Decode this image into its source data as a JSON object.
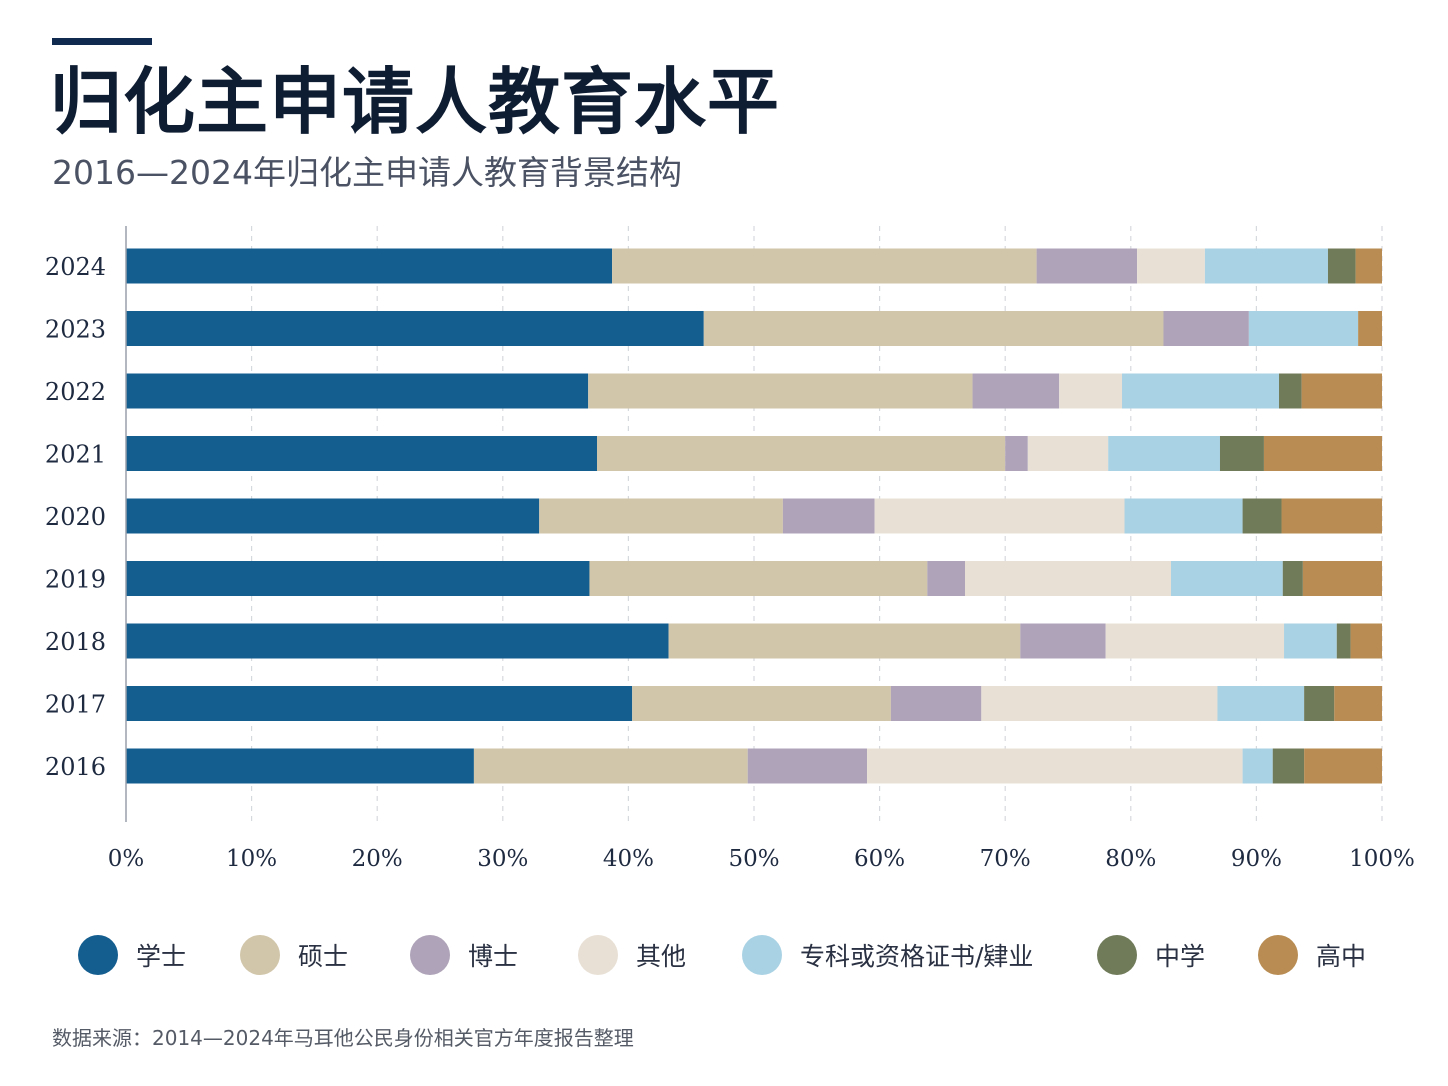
{
  "header": {
    "title": "归化主申请人教育水平",
    "subtitle": "2016—2024年归化主申请人教育背景结构"
  },
  "footer": {
    "source": "数据来源：2014—2024年马耳他公民身份相关官方年度报告整理"
  },
  "colors": {
    "accent": "#10294f",
    "grid": "#d6d9de"
  },
  "chart_data": {
    "type": "bar",
    "orientation": "horizontal",
    "stacked": true,
    "title": "归化主申请人教育水平",
    "subtitle": "2016—2024年归化主申请人教育背景结构",
    "xlabel": "",
    "ylabel": "",
    "xlim": [
      0,
      100
    ],
    "x_ticks": [
      "0%",
      "10%",
      "20%",
      "30%",
      "40%",
      "50%",
      "60%",
      "70%",
      "80%",
      "90%",
      "100%"
    ],
    "grid": "vertical dashed",
    "legend_position": "bottom",
    "categories": [
      "2024",
      "2023",
      "2022",
      "2021",
      "2020",
      "2019",
      "2018",
      "2017",
      "2016"
    ],
    "series": [
      {
        "name": "学士",
        "color": "#135d8f",
        "values": [
          38.7,
          46.0,
          36.8,
          37.5,
          32.9,
          36.9,
          43.2,
          40.3,
          27.7
        ]
      },
      {
        "name": "硕士",
        "color": "#d1c6aa",
        "values": [
          33.8,
          36.6,
          30.6,
          32.5,
          19.4,
          26.9,
          28.0,
          20.6,
          21.8
        ]
      },
      {
        "name": "博士",
        "color": "#aea3b8",
        "values": [
          8.0,
          6.8,
          6.9,
          1.8,
          7.3,
          3.0,
          6.8,
          7.2,
          9.5
        ]
      },
      {
        "name": "其他",
        "color": "#e8e0d5",
        "values": [
          5.4,
          0.0,
          5.0,
          6.4,
          19.9,
          16.4,
          14.2,
          18.8,
          29.9
        ]
      },
      {
        "name": "专科或资格证书/肄业",
        "color": "#a9d2e4",
        "values": [
          9.8,
          8.7,
          12.5,
          8.9,
          9.4,
          8.9,
          4.2,
          6.9,
          2.4
        ]
      },
      {
        "name": "中学",
        "color": "#707b5a",
        "values": [
          2.2,
          0.0,
          1.8,
          3.5,
          3.1,
          1.6,
          1.1,
          2.4,
          2.5
        ]
      },
      {
        "name": "高中",
        "color": "#b88c52",
        "values": [
          2.1,
          1.9,
          6.4,
          9.4,
          8.0,
          6.3,
          2.5,
          3.8,
          6.2
        ]
      }
    ]
  }
}
